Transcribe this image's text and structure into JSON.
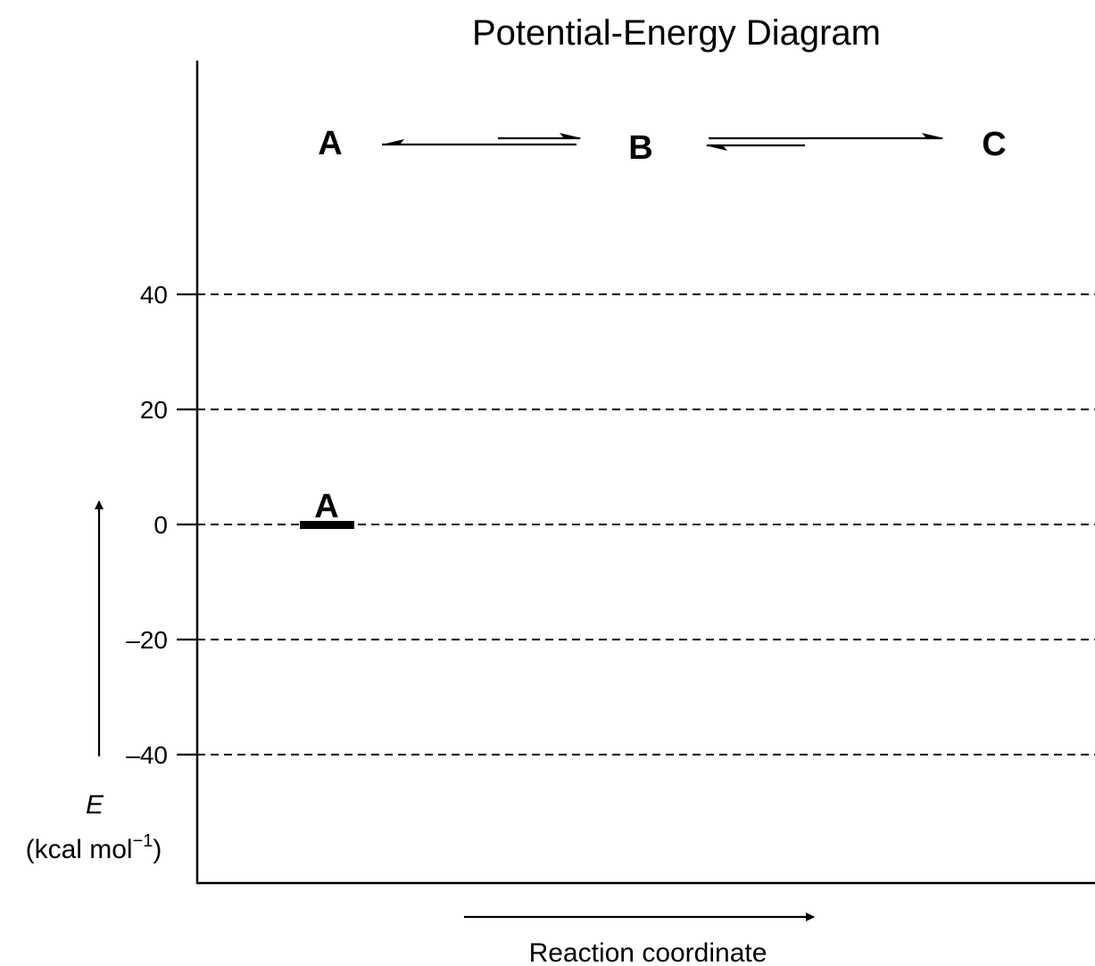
{
  "title": "Potential-Energy Diagram",
  "reaction": {
    "species": [
      "A",
      "B",
      "C"
    ]
  },
  "y_axis": {
    "symbol": "E",
    "units_prefix": "(kcal mol",
    "units_exponent": "−1",
    "units_suffix": ")",
    "ticks": [
      {
        "value": 40,
        "label": "40"
      },
      {
        "value": 20,
        "label": "20"
      },
      {
        "value": 0,
        "label": "0"
      },
      {
        "value": -20,
        "label": "–20"
      },
      {
        "value": -40,
        "label": "–40"
      }
    ]
  },
  "x_axis": {
    "label": "Reaction coordinate"
  },
  "levels": [
    {
      "label": "A",
      "energy": 0
    }
  ],
  "colors": {
    "ink": "#000000",
    "background": "#ffffff"
  }
}
